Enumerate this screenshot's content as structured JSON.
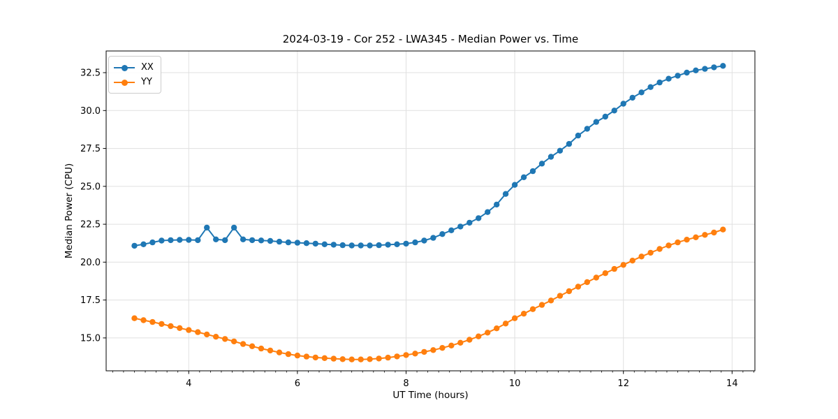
{
  "chart_data": {
    "type": "line",
    "title": "2024-03-19 - Cor 252 - LWA345 - Median Power vs. Time",
    "xlabel": "UT Time (hours)",
    "ylabel": "Median Power (CPU)",
    "xlim": [
      2.48,
      14.42
    ],
    "ylim": [
      12.83,
      33.93
    ],
    "grid": true,
    "grid_color": "#e0e0e0",
    "background_color": "#ffffff",
    "axis_color": "#000000",
    "legend_position": "upper left",
    "x_ticks": {
      "values": [
        4,
        6,
        8,
        10,
        12,
        14
      ],
      "labels": [
        "4",
        "6",
        "8",
        "10",
        "12",
        "14"
      ],
      "minor_step": 0.2
    },
    "y_ticks": {
      "values": [
        15.0,
        17.5,
        20.0,
        22.5,
        25.0,
        27.5,
        30.0,
        32.5
      ],
      "labels": [
        "15.0",
        "17.5",
        "20.0",
        "22.5",
        "25.0",
        "27.5",
        "30.0",
        "32.5"
      ]
    },
    "x": [
      3.0,
      3.167,
      3.333,
      3.5,
      3.667,
      3.833,
      4.0,
      4.167,
      4.333,
      4.5,
      4.667,
      4.833,
      5.0,
      5.167,
      5.333,
      5.5,
      5.667,
      5.833,
      6.0,
      6.167,
      6.333,
      6.5,
      6.667,
      6.833,
      7.0,
      7.167,
      7.333,
      7.5,
      7.667,
      7.833,
      8.0,
      8.167,
      8.333,
      8.5,
      8.667,
      8.833,
      9.0,
      9.167,
      9.333,
      9.5,
      9.667,
      9.833,
      10.0,
      10.167,
      10.333,
      10.5,
      10.667,
      10.833,
      11.0,
      11.167,
      11.333,
      11.5,
      11.667,
      11.833,
      12.0,
      12.167,
      12.333,
      12.5,
      12.667,
      12.833,
      13.0,
      13.167,
      13.333,
      13.5,
      13.667,
      13.833
    ],
    "series": [
      {
        "name": "XX",
        "color": "#1f77b4",
        "marker": "circle",
        "values": [
          21.08,
          21.18,
          21.3,
          21.42,
          21.45,
          21.47,
          21.47,
          21.45,
          22.28,
          21.5,
          21.45,
          22.28,
          21.5,
          21.45,
          21.43,
          21.4,
          21.35,
          21.3,
          21.28,
          21.25,
          21.22,
          21.18,
          21.15,
          21.12,
          21.1,
          21.1,
          21.1,
          21.12,
          21.15,
          21.18,
          21.22,
          21.3,
          21.42,
          21.6,
          21.85,
          22.1,
          22.35,
          22.6,
          22.9,
          23.3,
          23.8,
          24.5,
          25.1,
          25.6,
          26.0,
          26.5,
          26.95,
          27.35,
          27.8,
          28.35,
          28.8,
          29.25,
          29.6,
          30.0,
          30.45,
          30.85,
          31.2,
          31.55,
          31.85,
          32.1,
          32.3,
          32.5,
          32.65,
          32.75,
          32.85,
          32.95
        ]
      },
      {
        "name": "YY",
        "color": "#ff7f0e",
        "marker": "circle",
        "values": [
          16.3,
          16.17,
          16.05,
          15.92,
          15.78,
          15.65,
          15.52,
          15.38,
          15.23,
          15.08,
          14.93,
          14.77,
          14.6,
          14.45,
          14.3,
          14.17,
          14.04,
          13.93,
          13.84,
          13.77,
          13.71,
          13.67,
          13.63,
          13.6,
          13.58,
          13.58,
          13.6,
          13.64,
          13.7,
          13.78,
          13.87,
          13.97,
          14.08,
          14.2,
          14.34,
          14.5,
          14.68,
          14.88,
          15.1,
          15.35,
          15.63,
          15.95,
          16.3,
          16.6,
          16.9,
          17.18,
          17.47,
          17.78,
          18.08,
          18.38,
          18.68,
          18.98,
          19.27,
          19.55,
          19.82,
          20.1,
          20.37,
          20.62,
          20.87,
          21.1,
          21.3,
          21.48,
          21.64,
          21.8,
          21.95,
          22.15
        ]
      }
    ]
  }
}
